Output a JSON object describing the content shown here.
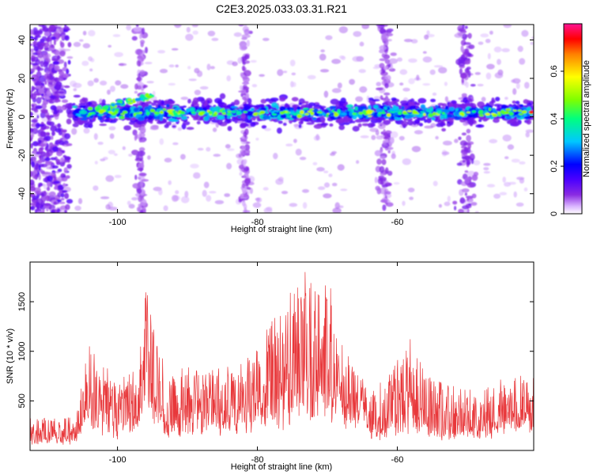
{
  "title": "C2E3.2025.033.03.31.R21",
  "chart_data": [
    {
      "type": "heatmap",
      "xlabel": "Height of straight line (km)",
      "ylabel": "Frequency (Hz)",
      "xlim": [
        -112.5,
        -40.5
      ],
      "ylim": [
        -50,
        48
      ],
      "x_ticks": [
        -100,
        -80,
        -60
      ],
      "y_ticks": [
        -40,
        -20,
        0,
        20,
        40
      ],
      "band_center_hz": 2,
      "colorbar": {
        "label": "Normalized spectral amplitude",
        "range": [
          0,
          0.8
        ],
        "ticks": [
          0.0,
          0.2,
          0.4,
          0.6
        ],
        "colors": [
          "#ffffff",
          "#d9b3ff",
          "#8a2be2",
          "#4b00ff",
          "#0000ff",
          "#00c8ff",
          "#00ff7f",
          "#7fff00",
          "#ffff00",
          "#ff8000",
          "#ff0000",
          "#ff1493"
        ]
      }
    },
    {
      "type": "line",
      "xlabel": "Height of straight line (km)",
      "ylabel": "SNR (10 * v/v)",
      "xlim": [
        -112.5,
        -40.5
      ],
      "ylim": [
        0,
        1900
      ],
      "x_ticks": [
        -100,
        -80,
        -60
      ],
      "y_ticks": [
        500,
        1000,
        1500
      ],
      "color": "#e8383b",
      "envelope": [
        [
          -112.5,
          100,
          330
        ],
        [
          -106,
          100,
          340
        ],
        [
          -105,
          300,
          700
        ],
        [
          -104,
          350,
          1080
        ],
        [
          -100,
          200,
          700
        ],
        [
          -97,
          300,
          900
        ],
        [
          -96,
          500,
          1620
        ],
        [
          -95,
          450,
          1420
        ],
        [
          -93,
          200,
          700
        ],
        [
          -90,
          250,
          850
        ],
        [
          -88,
          300,
          850
        ],
        [
          -85,
          250,
          800
        ],
        [
          -82,
          300,
          900
        ],
        [
          -80,
          350,
          1000
        ],
        [
          -78,
          400,
          1300
        ],
        [
          -76,
          400,
          1400
        ],
        [
          -74,
          500,
          1880
        ],
        [
          -72,
          450,
          1600
        ],
        [
          -70,
          500,
          1880
        ],
        [
          -69,
          450,
          1300
        ],
        [
          -67,
          400,
          1000
        ],
        [
          -65,
          350,
          800
        ],
        [
          -64,
          150,
          600
        ],
        [
          -62,
          200,
          700
        ],
        [
          -60,
          250,
          900
        ],
        [
          -58,
          350,
          1120
        ],
        [
          -56,
          250,
          800
        ],
        [
          -54,
          200,
          700
        ],
        [
          -52,
          150,
          650
        ],
        [
          -48,
          200,
          600
        ],
        [
          -45,
          250,
          700
        ],
        [
          -42,
          300,
          800
        ],
        [
          -40.5,
          350,
          850
        ]
      ]
    }
  ]
}
